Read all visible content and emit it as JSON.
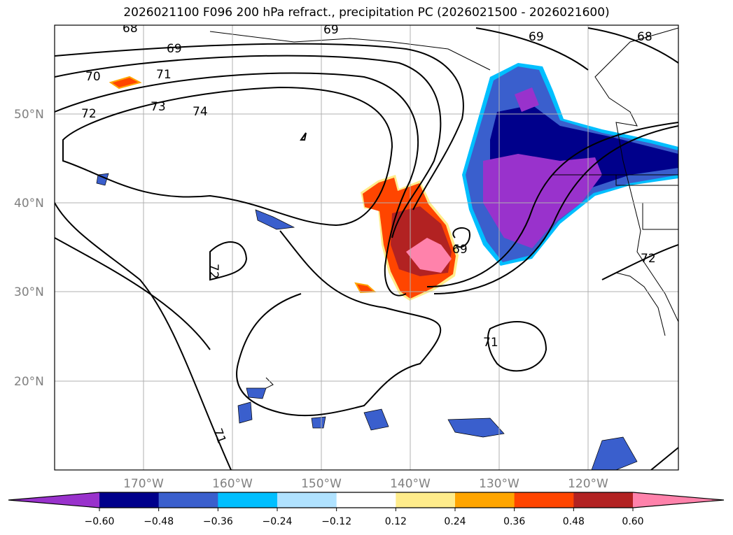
{
  "title": "2026021100 F096 200 hPa refract., precipitation PC (2026021500 - 2026021600)",
  "lat_ticks": [
    "50°N",
    "40°N",
    "30°N",
    "20°N"
  ],
  "lon_ticks": [
    "170°W",
    "160°W",
    "150°W",
    "140°W",
    "130°W",
    "120°W"
  ],
  "contour_labels": {
    "c68a": "68",
    "c69a": "69",
    "c69b": "69",
    "c68b": "68",
    "c70": "70",
    "c71a": "71",
    "c72a": "72",
    "c73": "73",
    "c74": "74",
    "c72b": "72",
    "c69c": "69",
    "c71b": "71",
    "c71c": "71",
    "c72c": "72",
    "c71d": "71"
  },
  "colorbar": {
    "colors": [
      "#9932CC",
      "#00008B",
      "#3A5FCD",
      "#00BFFF",
      "#B0E2FF",
      "#FFFFFF",
      "#FFEC8B",
      "#FFA500",
      "#FF4500",
      "#B22222",
      "#FF82AB"
    ],
    "labels": [
      "−0.60",
      "−0.48",
      "−0.36",
      "−0.24",
      "−0.12",
      "0.12",
      "0.24",
      "0.36",
      "0.48",
      "0.60"
    ]
  }
}
